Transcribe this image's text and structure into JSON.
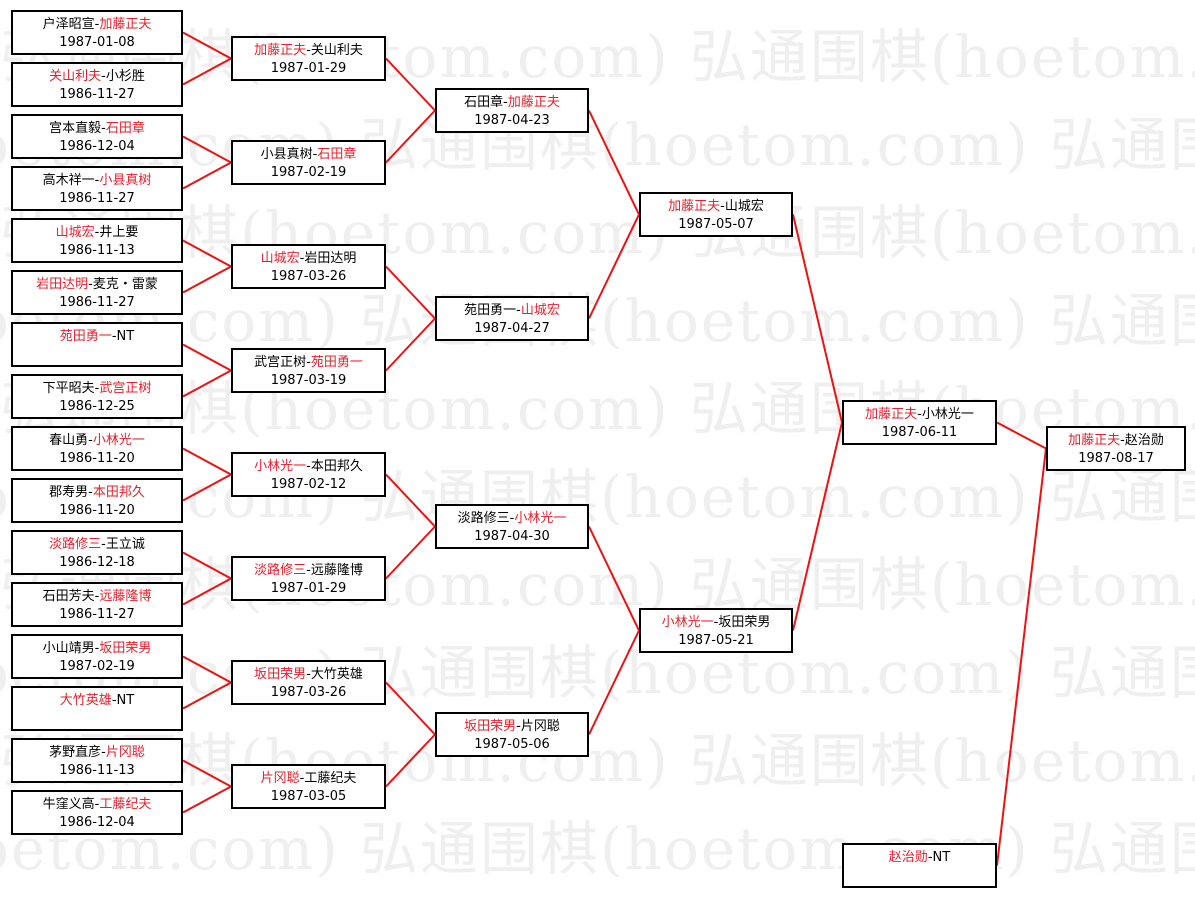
{
  "watermark": "弘通围棋(hoetom.com)",
  "colors": {
    "winner": "#e8202a",
    "text": "#000000",
    "connector": "#ee1111"
  },
  "separator": "-",
  "rounds": [
    {
      "matches": [
        {
          "p1": "户泽昭宣",
          "p2": "加藤正夫",
          "date": "1987-01-08",
          "winner": 2
        },
        {
          "p1": "关山利夫",
          "p2": "小杉胜",
          "date": "1986-11-27",
          "winner": 1
        },
        {
          "p1": "宫本直毅",
          "p2": "石田章",
          "date": "1986-12-04",
          "winner": 2
        },
        {
          "p1": "高木祥一",
          "p2": "小县真树",
          "date": "1986-11-27",
          "winner": 2
        },
        {
          "p1": "山城宏",
          "p2": "井上要",
          "date": "1986-11-13",
          "winner": 1
        },
        {
          "p1": "岩田达明",
          "p2": "麦克・雷蒙",
          "date": "1986-11-27",
          "winner": 1
        },
        {
          "p1": "苑田勇一",
          "p2": "NT",
          "date": "",
          "winner": 1
        },
        {
          "p1": "下平昭夫",
          "p2": "武宫正树",
          "date": "1986-12-25",
          "winner": 2
        },
        {
          "p1": "春山勇",
          "p2": "小林光一",
          "date": "1986-11-20",
          "winner": 2
        },
        {
          "p1": "郡寿男",
          "p2": "本田邦久",
          "date": "1986-11-20",
          "winner": 2
        },
        {
          "p1": "淡路修三",
          "p2": "王立诚",
          "date": "1986-12-18",
          "winner": 1
        },
        {
          "p1": "石田芳夫",
          "p2": "远藤隆博",
          "date": "1986-11-27",
          "winner": 2
        },
        {
          "p1": "小山靖男",
          "p2": "坂田荣男",
          "date": "1987-02-19",
          "winner": 2
        },
        {
          "p1": "大竹英雄",
          "p2": "NT",
          "date": "",
          "winner": 1
        },
        {
          "p1": "茅野直彦",
          "p2": "片冈聪",
          "date": "1986-11-13",
          "winner": 2
        },
        {
          "p1": "牛窪义高",
          "p2": "工藤纪夫",
          "date": "1986-12-04",
          "winner": 2
        }
      ]
    },
    {
      "matches": [
        {
          "p1": "加藤正夫",
          "p2": "关山利夫",
          "date": "1987-01-29",
          "winner": 1
        },
        {
          "p1": "小县真树",
          "p2": "石田章",
          "date": "1987-02-19",
          "winner": 2
        },
        {
          "p1": "山城宏",
          "p2": "岩田达明",
          "date": "1987-03-26",
          "winner": 1
        },
        {
          "p1": "武宫正树",
          "p2": "苑田勇一",
          "date": "1987-03-19",
          "winner": 2
        },
        {
          "p1": "小林光一",
          "p2": "本田邦久",
          "date": "1987-02-12",
          "winner": 1
        },
        {
          "p1": "淡路修三",
          "p2": "远藤隆博",
          "date": "1987-01-29",
          "winner": 1
        },
        {
          "p1": "坂田荣男",
          "p2": "大竹英雄",
          "date": "1987-03-26",
          "winner": 1
        },
        {
          "p1": "片冈聪",
          "p2": "工藤纪夫",
          "date": "1987-03-05",
          "winner": 1
        }
      ]
    },
    {
      "matches": [
        {
          "p1": "石田章",
          "p2": "加藤正夫",
          "date": "1987-04-23",
          "winner": 2
        },
        {
          "p1": "苑田勇一",
          "p2": "山城宏",
          "date": "1987-04-27",
          "winner": 2
        },
        {
          "p1": "淡路修三",
          "p2": "小林光一",
          "date": "1987-04-30",
          "winner": 2
        },
        {
          "p1": "坂田荣男",
          "p2": "片冈聪",
          "date": "1987-05-06",
          "winner": 1
        }
      ]
    },
    {
      "matches": [
        {
          "p1": "加藤正夫",
          "p2": "山城宏",
          "date": "1987-05-07",
          "winner": 1
        },
        {
          "p1": "小林光一",
          "p2": "坂田荣男",
          "date": "1987-05-21",
          "winner": 1
        }
      ]
    },
    {
      "matches": [
        {
          "p1": "加藤正夫",
          "p2": "小林光一",
          "date": "1987-06-11",
          "winner": 1
        }
      ]
    },
    {
      "matches": [
        {
          "p1": "加藤正夫",
          "p2": "赵治勋",
          "date": "1987-08-17",
          "winner": 1
        }
      ]
    }
  ],
  "bye": {
    "p1": "赵治勋",
    "p2": "NT",
    "date": "",
    "winner": 1
  }
}
